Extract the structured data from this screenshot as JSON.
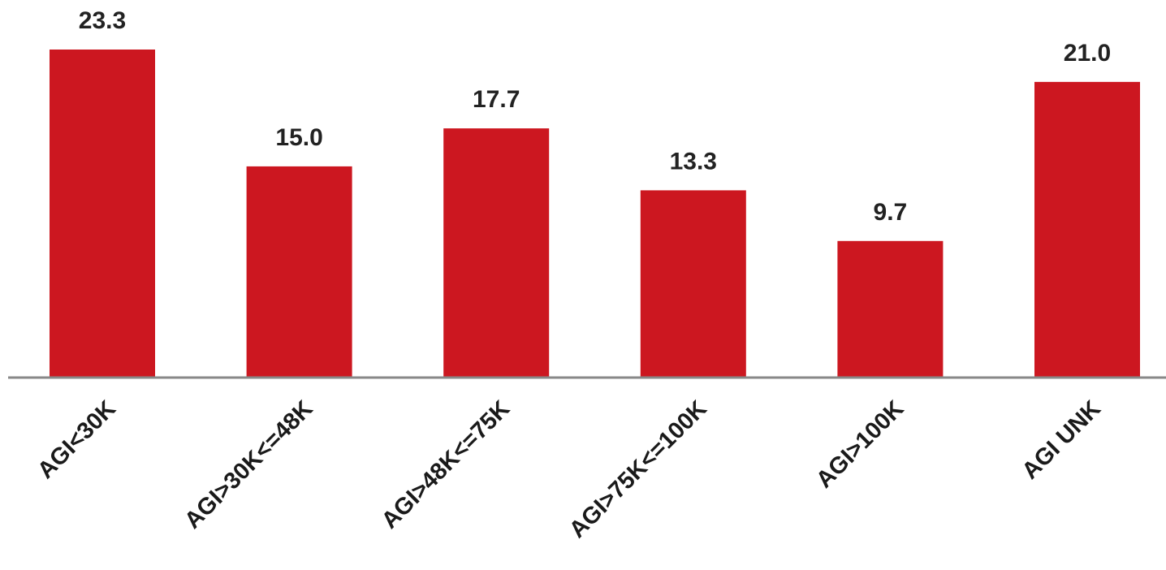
{
  "chart_data": {
    "type": "bar",
    "title": "",
    "xlabel": "",
    "ylabel": "",
    "categories": [
      "AGI<30K",
      "AGI>30K<=48K",
      "AGI>48K<=75K",
      "AGI>75K<=100K",
      "AGI>100K",
      "AGI UNK"
    ],
    "values": [
      23.3,
      15.0,
      17.7,
      13.3,
      9.7,
      21.0
    ],
    "value_labels": [
      "23.3",
      "15.0",
      "17.7",
      "13.3",
      "9.7",
      "21.0"
    ],
    "ylim": [
      0,
      23.3
    ],
    "grid": false,
    "legend": "none",
    "bar_color": "#cc1720",
    "axis_color": "#888888"
  }
}
